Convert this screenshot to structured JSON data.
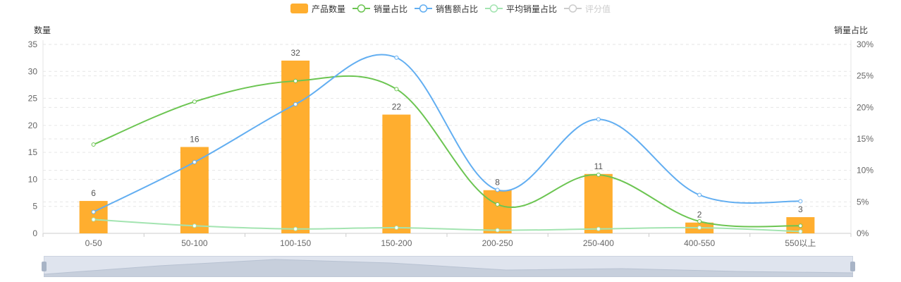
{
  "legend": {
    "items": [
      {
        "label": "产品数量",
        "kind": "bar",
        "color": "#ffae2f",
        "active": true
      },
      {
        "label": "销量占比",
        "kind": "line",
        "color": "#6cc552",
        "active": true
      },
      {
        "label": "销售额占比",
        "kind": "line",
        "color": "#62aef1",
        "active": true
      },
      {
        "label": "平均销量占比",
        "kind": "line",
        "color": "#a3e4b1",
        "active": true
      },
      {
        "label": "评分值",
        "kind": "line",
        "color": "#cccccc",
        "active": false
      }
    ]
  },
  "axis": {
    "left_name": "数量",
    "right_name": "销量占比"
  },
  "chart_data": {
    "type": "bar",
    "categories": [
      "0-50",
      "50-100",
      "100-150",
      "150-200",
      "200-250",
      "250-400",
      "400-550",
      "550以上"
    ],
    "left_axis": {
      "min": 0,
      "max": 35,
      "ticks": [
        0,
        5,
        10,
        15,
        20,
        25,
        30,
        35
      ]
    },
    "right_axis": {
      "min": 0,
      "max": 30,
      "ticks": [
        "0%",
        "5%",
        "10%",
        "15%",
        "20%",
        "25%",
        "30%"
      ],
      "unit": "%"
    },
    "grid": true,
    "legend_position": "top-center",
    "series": [
      {
        "name": "产品数量",
        "type": "bar",
        "axis": "left",
        "color": "#ffae2f",
        "values": [
          6,
          16,
          32,
          22,
          8,
          11,
          2,
          3
        ],
        "data_labels": [
          "6",
          "16",
          "32",
          "22",
          "8",
          "11",
          "2",
          "3"
        ]
      },
      {
        "name": "销量占比",
        "type": "line",
        "axis": "right",
        "color": "#6cc552",
        "values": [
          14.1,
          20.9,
          24.2,
          22.9,
          4.6,
          9.3,
          1.9,
          1.2
        ]
      },
      {
        "name": "销售额占比",
        "type": "line",
        "axis": "right",
        "color": "#62aef1",
        "values": [
          3.4,
          11.3,
          20.5,
          27.9,
          6.9,
          18.1,
          6.1,
          5.1
        ]
      },
      {
        "name": "平均销量占比",
        "type": "line",
        "axis": "right",
        "color": "#a3e4b1",
        "values": [
          2.2,
          1.2,
          0.7,
          0.9,
          0.5,
          0.7,
          0.9,
          0.3
        ]
      }
    ]
  },
  "data_zoom": {
    "start_percent": 0,
    "end_percent": 100
  }
}
